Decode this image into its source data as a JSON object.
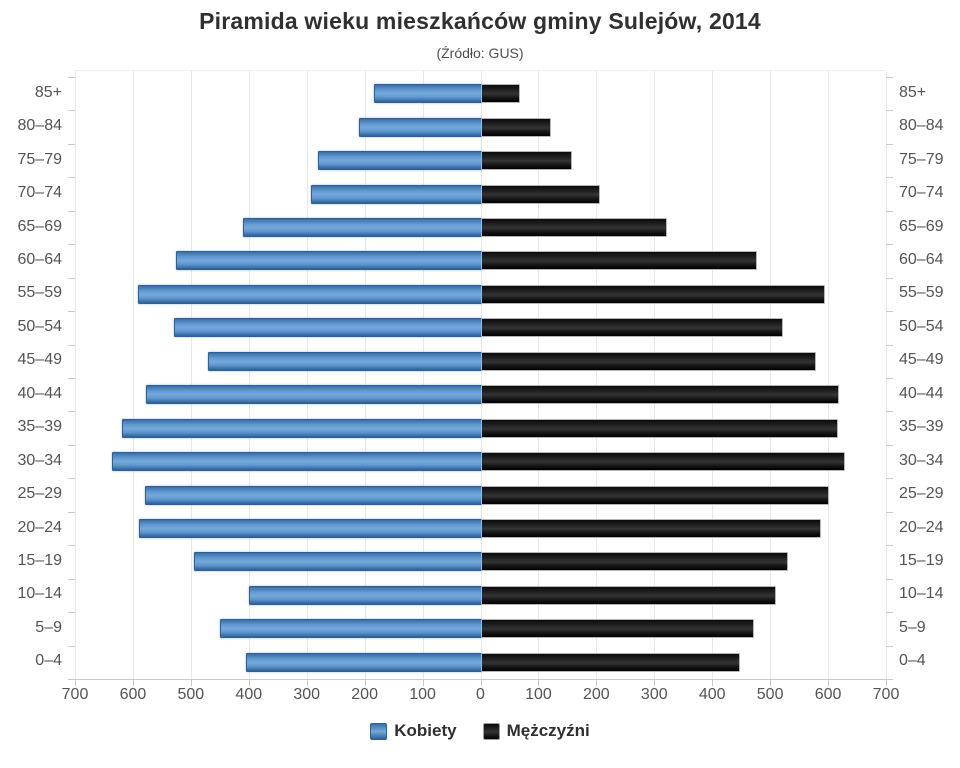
{
  "title": "Piramida wieku mieszkańców gminy Sulejów, 2014",
  "subtitle": "(Źródło: GUS)",
  "legend": {
    "items": [
      {
        "label": "Kobiety",
        "color": "#4f87c0"
      },
      {
        "label": "Mężczyźni",
        "color": "#141414"
      }
    ]
  },
  "axis": {
    "x_tick_labels": [
      "700",
      "600",
      "500",
      "400",
      "300",
      "200",
      "100",
      "0",
      "100",
      "200",
      "300",
      "400",
      "500",
      "600",
      "700"
    ],
    "x_tick_step": 100,
    "x_max_each_side": 700,
    "grid_color": "#e8e8e8",
    "axis_color": "#c9c9c9",
    "label_color": "#545454"
  },
  "chart_data": {
    "type": "bar",
    "subtype": "population-pyramid",
    "title": "Piramida wieku mieszkańców gminy Sulejów, 2014",
    "subtitle": "(Źródło: GUS)",
    "xlabel": "",
    "ylabel": "",
    "xlim": [
      -700,
      700
    ],
    "grid": true,
    "legend_position": "bottom",
    "categories": [
      "85+",
      "80–84",
      "75–79",
      "70–74",
      "65–69",
      "60–64",
      "55–59",
      "50–54",
      "45–49",
      "40–44",
      "35–39",
      "30–34",
      "25–29",
      "20–24",
      "15–19",
      "10–14",
      "5–9",
      "0–4"
    ],
    "series": [
      {
        "name": "Kobiety",
        "side": "left",
        "color": "#4f87c0",
        "values": [
          183,
          210,
          280,
          293,
          410,
          525,
          592,
          529,
          471,
          578,
          619,
          636,
          580,
          590,
          494,
          399,
          449,
          405
        ]
      },
      {
        "name": "Mężczyźni",
        "side": "right",
        "color": "#141414",
        "values": [
          65,
          118,
          155,
          202,
          319,
          473,
          592,
          518,
          576,
          615,
          614,
          626,
          598,
          584,
          527,
          507,
          468,
          444
        ]
      }
    ]
  }
}
